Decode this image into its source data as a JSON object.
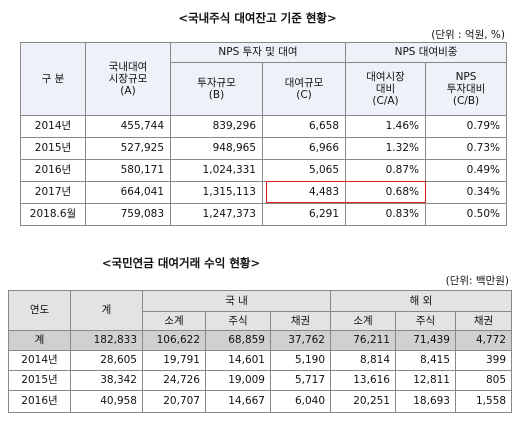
{
  "table1": {
    "title": "<국내주식 대여잔고 기준 현황>",
    "unit": "(단위 : 억원, %)",
    "header": {
      "division": "구   분",
      "market": "국내대여\n시장규모\n(A)",
      "nps_group": "NPS 투자 및 대여",
      "share_group": "NPS 대여비중",
      "invest": "투자규모\n(B)",
      "lend": "대여규모\n(C)",
      "vs_market": "대여시장\n대비\n(C/A)",
      "vs_invest": "NPS\n투자대비\n(C/B)"
    },
    "rows": [
      [
        "2014년",
        "455,744",
        "839,296",
        "6,658",
        "1.46%",
        "0.79%"
      ],
      [
        "2015년",
        "527,925",
        "948,965",
        "6,966",
        "1.32%",
        "0.73%"
      ],
      [
        "2016년",
        "580,171",
        "1,024,331",
        "5,065",
        "0.87%",
        "0.49%"
      ],
      [
        "2017년",
        "664,041",
        "1,315,113",
        "4,483",
        "0.68%",
        "0.34%"
      ],
      [
        "2018.6월",
        "759,083",
        "1,247,373",
        "6,291",
        "0.83%",
        "0.50%"
      ]
    ]
  },
  "table2": {
    "title": "<국민연금 대여거래 수익 현황>",
    "unit": "(단위: 백만원)",
    "header": {
      "year": "연도",
      "total": "계",
      "domestic": "국  내",
      "overseas": "해  외",
      "sub": [
        "소계",
        "주식",
        "채권",
        "소계",
        "주식",
        "채권"
      ]
    },
    "rows": [
      [
        "계",
        "182,833",
        "106,622",
        "68,859",
        "37,762",
        "76,211",
        "71,439",
        "4,772"
      ],
      [
        "2014년",
        "28,605",
        "19,791",
        "14,601",
        "5,190",
        "8,814",
        "8,415",
        "399"
      ],
      [
        "2015년",
        "38,342",
        "24,726",
        "19,009",
        "5,717",
        "13,616",
        "12,811",
        "805"
      ],
      [
        "2016년",
        "40,958",
        "20,707",
        "14,667",
        "6,040",
        "20,251",
        "18,693",
        "1,558"
      ]
    ]
  }
}
